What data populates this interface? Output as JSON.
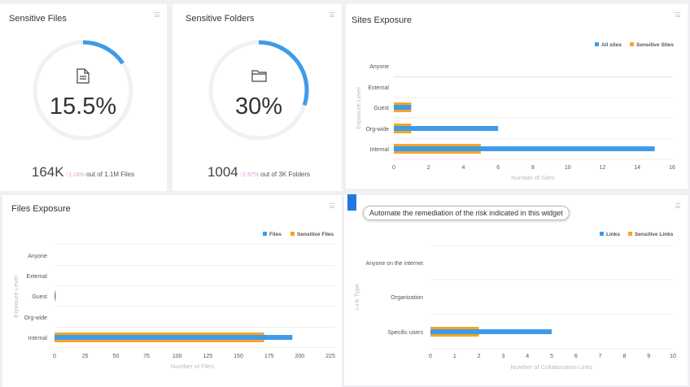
{
  "sensitive_files": {
    "title": "Sensitive Files",
    "percent": "15.5%",
    "percent_value": 15.5,
    "count": "164K",
    "change": "↑1.18%",
    "total": "out of 1.1M Files",
    "icon": "file-icon"
  },
  "sensitive_folders": {
    "title": "Sensitive Folders",
    "percent": "30%",
    "percent_value": 30,
    "count": "1004",
    "change": "↑2.67%",
    "total": "out of 3K Folders",
    "icon": "folder-icon"
  },
  "tooltip": "Automate the remediation of the risk indicated in this widget",
  "colors": {
    "primary": "#3d9be9",
    "sensitive": "#f5a623",
    "change": "#e59ad6"
  },
  "chart_data": [
    {
      "id": "sites",
      "type": "bar",
      "orientation": "horizontal",
      "title": "Sites Exposure",
      "categories": [
        "Anyone",
        "External",
        "Guest",
        "Org-wide",
        "Internal"
      ],
      "series": [
        {
          "name": "All sites",
          "values": [
            0,
            0,
            1,
            6,
            15
          ]
        },
        {
          "name": "Sensitive Sites",
          "values": [
            0,
            0,
            1,
            1,
            5
          ]
        }
      ],
      "xlabel": "Number of Sites",
      "ylabel": "Exposure Level",
      "xlim": [
        0,
        16
      ],
      "xticks": [
        "0",
        "2",
        "4",
        "6",
        "8",
        "10",
        "12",
        "14",
        "16"
      ],
      "legend": "top-right",
      "grid": true
    },
    {
      "id": "files",
      "type": "bar",
      "orientation": "horizontal",
      "title": "Files Exposure",
      "categories": [
        "Anyone",
        "External",
        "Guest",
        "Org-wide",
        "Internal"
      ],
      "series": [
        {
          "name": "Files",
          "values": [
            0,
            0,
            1,
            0,
            194
          ]
        },
        {
          "name": "Sensitive Files",
          "values": [
            0,
            0,
            1,
            0,
            171
          ]
        }
      ],
      "xlabel": "Number of Files",
      "ylabel": "Exposure Level",
      "xlim": [
        0,
        225
      ],
      "xticks": [
        "0",
        "25",
        "50",
        "75",
        "100",
        "125",
        "150",
        "175",
        "200",
        "225"
      ],
      "legend": "top-right",
      "grid": true
    },
    {
      "id": "links",
      "type": "bar",
      "orientation": "horizontal",
      "title": "",
      "categories": [
        "Anyone on the internet",
        "Organization",
        "Specific users"
      ],
      "series": [
        {
          "name": "Links",
          "values": [
            0,
            0,
            5
          ]
        },
        {
          "name": "Sensitive Links",
          "values": [
            0,
            0,
            2
          ]
        }
      ],
      "xlabel": "Number of Collaboration Links",
      "ylabel": "Link Type",
      "xlim": [
        0,
        10
      ],
      "xticks": [
        "0",
        "1",
        "2",
        "3",
        "4",
        "5",
        "6",
        "7",
        "8",
        "9",
        "10"
      ],
      "legend": "top-right",
      "grid": true
    }
  ]
}
